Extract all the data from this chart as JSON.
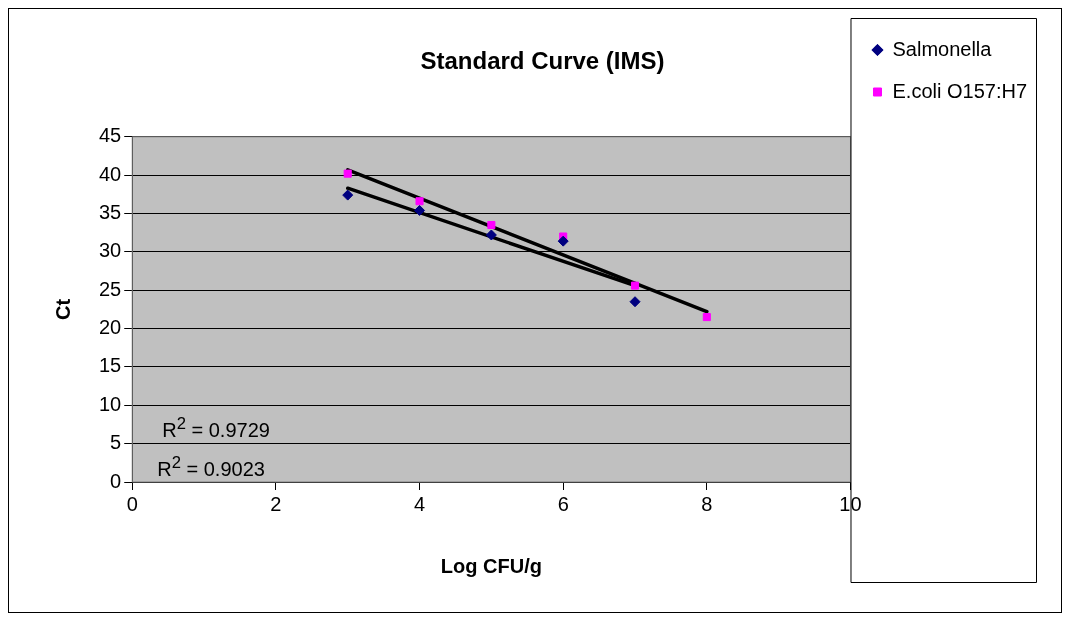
{
  "chart_data": {
    "type": "scatter",
    "title": "Standard Curve (IMS)",
    "xlabel": "Log CFU/g",
    "ylabel": "Ct",
    "xlim": [
      0,
      10
    ],
    "xticks": [
      0,
      2,
      4,
      6,
      8,
      10
    ],
    "ylim": [
      0,
      45
    ],
    "yticks": [
      0,
      5,
      10,
      15,
      20,
      25,
      30,
      35,
      40,
      45
    ],
    "grid": "y",
    "legend": "right",
    "series": [
      {
        "name": "Salmonella",
        "marker": "diamond",
        "color": "#000080",
        "x": [
          3,
          4,
          5,
          6,
          7
        ],
        "values": [
          37.4,
          35.4,
          32.2,
          31.4,
          23.5
        ]
      },
      {
        "name": "E.coli O157:H7",
        "marker": "square",
        "color": "#ff00ff",
        "x": [
          3,
          4,
          5,
          6,
          7,
          8
        ],
        "values": [
          40.2,
          36.6,
          33.5,
          32.0,
          25.6,
          21.5
        ]
      },
      {
        "type": "line",
        "marker": "none",
        "color": "#000000",
        "x": [
          3,
          7
        ],
        "values": [
          38.3,
          25.6
        ]
      },
      {
        "type": "line",
        "marker": "none",
        "color": "#000000",
        "x": [
          3,
          8
        ],
        "values": [
          40.7,
          22.2
        ]
      }
    ],
    "annotations": [
      "R$^{2}$ = 0.9729",
      "R$^{2}$ = 0.9023"
    ]
  }
}
